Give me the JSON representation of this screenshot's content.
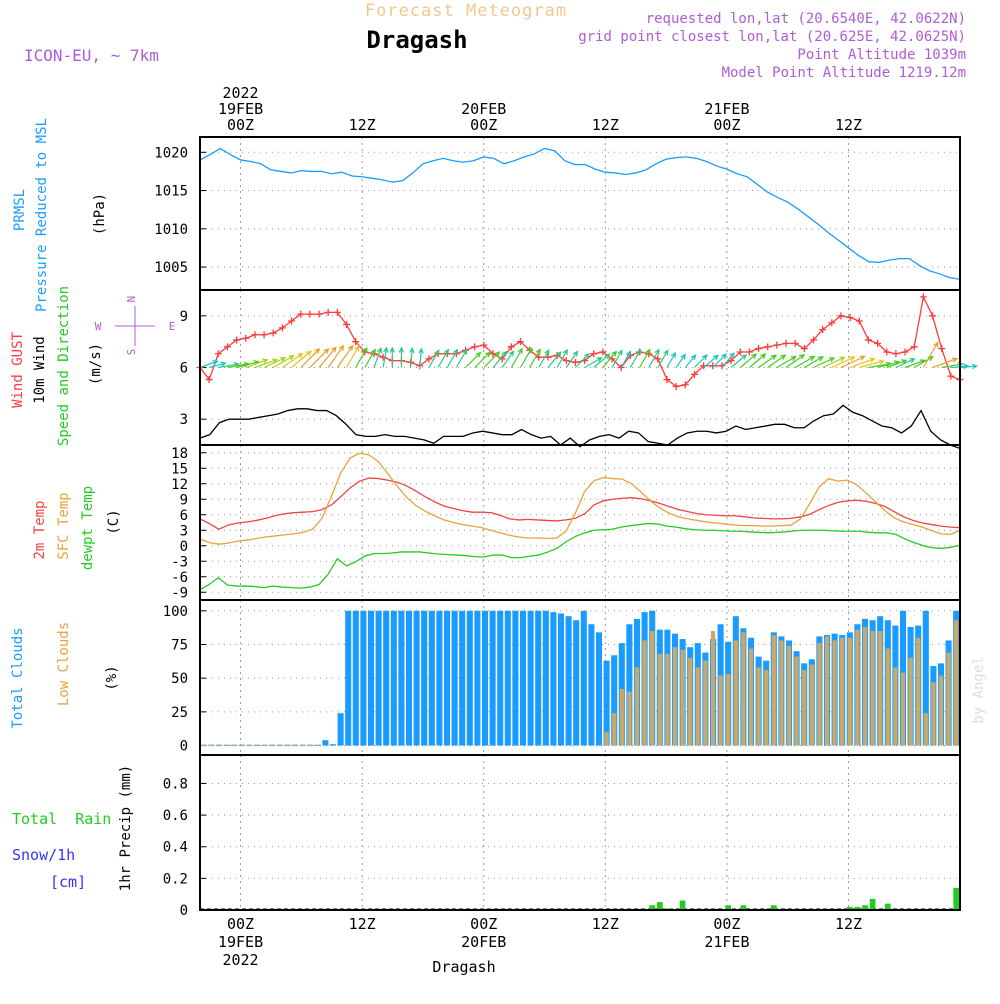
{
  "header": {
    "app_title": "Forecast Meteogram",
    "location": "Dragash",
    "model": "ICON-EU, ~ 7km",
    "requested": "requested lon,lat (20.6540E, 42.0622N)",
    "grid_point": "grid point closest lon,lat (20.625E, 42.0625N)",
    "point_altitude": "Point Altitude 1039m",
    "model_altitude": "Model Point Altitude 1219.12m"
  },
  "footer": {
    "location": "Dragash",
    "credit": "by Angel"
  },
  "time_axis": {
    "start": "2022-02-18T20:00Z",
    "end": "2022-02-21T23:00Z",
    "top_ticks": [
      {
        "lines": [
          "2022",
          "19FEB",
          "00Z"
        ]
      },
      {
        "lines": [
          "12Z"
        ]
      },
      {
        "lines": [
          "20FEB",
          "00Z"
        ]
      },
      {
        "lines": [
          "12Z"
        ]
      },
      {
        "lines": [
          "21FEB",
          "00Z"
        ]
      },
      {
        "lines": [
          "12Z"
        ]
      }
    ],
    "bottom_ticks": [
      {
        "lines": [
          "00Z",
          "19FEB",
          "2022"
        ]
      },
      {
        "lines": [
          "12Z"
        ]
      },
      {
        "lines": [
          "00Z",
          "20FEB"
        ]
      },
      {
        "lines": [
          "12Z"
        ]
      },
      {
        "lines": [
          "00Z",
          "21FEB"
        ]
      },
      {
        "lines": [
          "12Z"
        ]
      }
    ]
  },
  "colors": {
    "pressure": "#1a9cff",
    "gust": "#ff3b3b",
    "wind": "#000000",
    "temp2m": "#ee4444",
    "sfc_temp": "#e8a33a",
    "dewpt": "#22cc22",
    "total_clouds": "#1a9cff",
    "low_clouds": "#c9a86a",
    "rain": "#22cc22",
    "snow": "#3333ff",
    "title_orange": "#f0c890",
    "purple": "#b05cd8"
  },
  "chart_data": [
    {
      "type": "line",
      "panel": "pressure",
      "ylabel_lines": [
        "PRMSL",
        "Pressure Reduced to MSL"
      ],
      "unit": "(hPa)",
      "ylim": [
        1002,
        1022
      ],
      "yticks": [
        1005,
        1010,
        1015,
        1020
      ],
      "grid": true,
      "series": [
        {
          "values": [
            1019,
            1019.7,
            1020.5,
            1019.7,
            1019,
            1018.8,
            1018.5,
            1017.7,
            1017.5,
            1017.3,
            1017.6,
            1017.5,
            1017.5,
            1017.2,
            1017.4,
            1016.9,
            1016.8,
            1016.6,
            1016.4,
            1016.1,
            1016.3,
            1017.3,
            1018.5,
            1018.9,
            1019.2,
            1018.9,
            1018.7,
            1018.9,
            1019.4,
            1019.2,
            1018.5,
            1018.9,
            1019.4,
            1019.8,
            1020.5,
            1020.2,
            1018.9,
            1018.4,
            1018.4,
            1017.8,
            1017.4,
            1017.3,
            1017.1,
            1017.3,
            1017.7,
            1018.5,
            1019.1,
            1019.3,
            1019.4,
            1019.2,
            1018.8,
            1018.2,
            1017.8,
            1017.2,
            1016.8,
            1015.8,
            1014.8,
            1014.1,
            1013.5,
            1012.6,
            1011.6,
            1010.6,
            1009.5,
            1008.5,
            1007.5,
            1006.5,
            1005.7,
            1005.6,
            1005.9,
            1006.1,
            1006.1,
            1005.2,
            1004.5,
            1004.1,
            1003.6,
            1003.4
          ]
        }
      ]
    },
    {
      "type": "line",
      "panel": "wind",
      "ylabel_gust": "Wind GUST",
      "ylabel_wind": "10m Wind",
      "ylabel_dir": "Speed and Direction",
      "unit": "(m/s)",
      "compass": {
        "n": "N",
        "s": "S",
        "w": "W",
        "e": "E"
      },
      "ylim": [
        1.5,
        10.5
      ],
      "yticks": [
        3,
        6,
        9
      ],
      "grid": true,
      "series": [
        {
          "name": "gust",
          "values": [
            6.0,
            5.3,
            6.8,
            7.2,
            7.6,
            7.7,
            7.9,
            7.9,
            8.0,
            8.3,
            8.7,
            9.1,
            9.1,
            9.1,
            9.2,
            9.2,
            8.5,
            7.5,
            6.9,
            6.8,
            6.6,
            6.4,
            6.4,
            6.3,
            6.1,
            6.5,
            6.8,
            6.8,
            6.8,
            7.0,
            7.2,
            7.3,
            6.8,
            6.5,
            7.2,
            7.5,
            7.0,
            6.6,
            6.6,
            6.7,
            6.4,
            6.3,
            6.4,
            6.8,
            6.9,
            6.5,
            6.0,
            6.7,
            6.9,
            6.8,
            6.5,
            5.3,
            4.9,
            5.0,
            5.6,
            6.1,
            6.1,
            6.1,
            6.4,
            6.9,
            6.9,
            7.1,
            7.2,
            7.3,
            7.4,
            7.4,
            7.1,
            7.6,
            8.2,
            8.6,
            9.0,
            8.9,
            8.7,
            7.6,
            7.4,
            6.9,
            6.8,
            6.9,
            7.2,
            10.1,
            9.0,
            7.1,
            5.5,
            5.3
          ]
        },
        {
          "name": "wind10m",
          "values": [
            1.9,
            2.1,
            2.8,
            3.0,
            3.0,
            3.0,
            3.1,
            3.2,
            3.3,
            3.5,
            3.6,
            3.6,
            3.5,
            3.5,
            3.2,
            2.7,
            2.1,
            2.0,
            2.0,
            2.1,
            2.0,
            2.0,
            1.9,
            1.8,
            1.6,
            2.0,
            2.0,
            2.0,
            2.2,
            2.3,
            2.2,
            2.1,
            2.1,
            2.4,
            2.1,
            1.9,
            2.0,
            1.5,
            1.9,
            1.4,
            1.8,
            2.0,
            2.1,
            1.9,
            2.3,
            2.2,
            1.7,
            1.6,
            1.5,
            1.9,
            2.2,
            2.3,
            2.3,
            2.2,
            2.3,
            2.6,
            2.4,
            2.5,
            2.6,
            2.7,
            2.7,
            2.5,
            2.5,
            2.9,
            3.2,
            3.3,
            3.8,
            3.4,
            3.2,
            2.9,
            2.6,
            2.5,
            2.2,
            2.6,
            3.5,
            2.3,
            1.8,
            1.5,
            1.3
          ]
        },
        {
          "name": "direction_deg",
          "values": [
            20,
            15,
            10,
            10,
            15,
            20,
            20,
            25,
            30,
            35,
            40,
            45,
            45,
            50,
            55,
            55,
            60,
            60,
            60,
            70,
            80,
            90,
            90,
            85,
            85,
            60,
            60,
            60,
            60,
            45,
            45,
            45,
            50,
            55,
            60,
            60,
            60,
            60,
            50,
            60,
            55,
            45,
            30,
            40,
            50,
            60,
            60,
            60,
            60,
            60,
            60,
            60,
            55,
            50,
            45,
            40,
            45,
            50,
            40,
            40,
            40,
            35,
            35,
            30,
            35,
            30,
            30,
            25,
            25,
            25,
            25,
            20,
            15,
            10,
            15,
            20,
            25,
            20,
            30,
            60,
            20,
            10,
            5,
            5
          ]
        }
      ]
    },
    {
      "type": "line",
      "panel": "temperature",
      "ylabel_t2m": "2m Temp",
      "ylabel_sfc": "SFC Temp",
      "ylabel_dew": "dewpt Temp",
      "unit": "(C)",
      "ylim": [
        -10.5,
        19.5
      ],
      "yticks": [
        -9,
        -6,
        -3,
        0,
        3,
        6,
        9,
        12,
        15,
        18
      ],
      "grid": true,
      "series": [
        {
          "name": "t2m",
          "values": [
            5.2,
            4.3,
            3.2,
            4.0,
            4.4,
            4.6,
            4.9,
            5.3,
            5.8,
            6.2,
            6.4,
            6.5,
            6.6,
            7.0,
            7.9,
            9.5,
            11.2,
            12.5,
            13.1,
            13.0,
            12.7,
            12.3,
            11.6,
            10.6,
            9.5,
            8.5,
            7.7,
            7.2,
            6.8,
            6.5,
            6.5,
            6.4,
            5.9,
            5.2,
            5.0,
            5.1,
            5.0,
            4.9,
            4.8,
            5.0,
            5.3,
            6.2,
            7.9,
            8.7,
            9.0,
            9.2,
            9.3,
            9.1,
            8.7,
            8.2,
            7.6,
            7.0,
            6.6,
            6.2,
            6.0,
            5.9,
            5.8,
            5.8,
            5.6,
            5.4,
            5.3,
            5.2,
            5.2,
            5.3,
            5.6,
            6.1,
            7.0,
            7.8,
            8.4,
            8.7,
            8.8,
            8.6,
            8.2,
            7.6,
            6.6,
            5.6,
            4.9,
            4.4,
            4.1,
            3.8,
            3.6,
            3.5
          ]
        },
        {
          "name": "sfc",
          "values": [
            1.3,
            0.6,
            0.3,
            0.5,
            0.9,
            1.1,
            1.4,
            1.7,
            1.9,
            2.1,
            2.3,
            2.6,
            3.2,
            5.3,
            9.5,
            14.1,
            17.0,
            17.9,
            17.6,
            16.3,
            14.0,
            11.6,
            9.4,
            7.8,
            6.7,
            5.8,
            5.0,
            4.5,
            4.1,
            3.8,
            3.5,
            3.0,
            2.5,
            2.0,
            1.7,
            1.5,
            1.5,
            1.4,
            1.5,
            2.8,
            6.3,
            10.5,
            12.6,
            13.2,
            13.0,
            12.9,
            12.0,
            10.4,
            8.7,
            7.3,
            6.3,
            5.6,
            5.2,
            4.9,
            4.6,
            4.4,
            4.2,
            4.0,
            3.9,
            3.9,
            3.8,
            3.8,
            3.9,
            4.0,
            5.2,
            8.2,
            11.4,
            13.0,
            12.5,
            12.7,
            11.8,
            10.2,
            8.5,
            6.8,
            5.4,
            4.6,
            4.1,
            3.6,
            2.9,
            2.3,
            2.2,
            3.0
          ]
        },
        {
          "name": "dewpt",
          "values": [
            -8.5,
            -7.5,
            -6.2,
            -7.6,
            -7.8,
            -7.8,
            -7.9,
            -8.1,
            -7.8,
            -8.0,
            -8.1,
            -8.2,
            -8.0,
            -7.5,
            -5.5,
            -2.5,
            -3.9,
            -3.1,
            -2.0,
            -1.5,
            -1.5,
            -1.4,
            -1.2,
            -1.2,
            -1.2,
            -1.4,
            -1.6,
            -1.7,
            -1.8,
            -1.9,
            -2.1,
            -2.2,
            -1.8,
            -1.8,
            -2.3,
            -2.3,
            -2.0,
            -1.8,
            -1.2,
            -0.5,
            0.8,
            1.8,
            2.5,
            3.0,
            3.1,
            3.2,
            3.6,
            3.9,
            4.1,
            4.3,
            4.2,
            3.8,
            3.6,
            3.3,
            3.1,
            3.0,
            3.0,
            2.9,
            2.8,
            2.8,
            2.7,
            2.6,
            2.5,
            2.6,
            2.7,
            2.9,
            3.0,
            3.0,
            3.0,
            2.9,
            2.8,
            2.8,
            2.8,
            2.6,
            2.5,
            2.5,
            2.2,
            1.3,
            0.6,
            0.0,
            -0.4,
            -0.5,
            -0.3,
            0.1
          ]
        }
      ]
    },
    {
      "type": "bar",
      "panel": "clouds",
      "ylabel_total": "Total Clouds",
      "ylabel_low": "Low Clouds",
      "unit": "(%)",
      "ylim": [
        -7,
        108
      ],
      "yticks": [
        0,
        25,
        50,
        75,
        100
      ],
      "grid": true,
      "series": [
        {
          "name": "total",
          "values": [
            0,
            0,
            0,
            0,
            0,
            0,
            0,
            0,
            0,
            0,
            0,
            0,
            0,
            0,
            0,
            0,
            4,
            1,
            24,
            100,
            100,
            100,
            100,
            100,
            100,
            100,
            100,
            100,
            100,
            100,
            100,
            100,
            100,
            100,
            100,
            100,
            100,
            100,
            100,
            100,
            100,
            100,
            100,
            100,
            100,
            100,
            99,
            98,
            96,
            93,
            100,
            90,
            84,
            63,
            67,
            76,
            90,
            94,
            99,
            100,
            86,
            86,
            83,
            79,
            73,
            76,
            69,
            79,
            90,
            77,
            96,
            87,
            80,
            66,
            63,
            84,
            81,
            78,
            70,
            61,
            64,
            81,
            82,
            83,
            82,
            84,
            90,
            94,
            93,
            96,
            93,
            89,
            100,
            88,
            89,
            100,
            59,
            61,
            78,
            100
          ]
        },
        {
          "name": "low",
          "values": [
            0,
            0,
            0,
            0,
            0,
            0,
            0,
            0,
            0,
            0,
            0,
            0,
            0,
            0,
            0,
            0,
            0,
            0,
            0,
            0,
            0,
            0,
            0,
            0,
            0,
            0,
            0,
            0,
            0,
            0,
            0,
            0,
            0,
            0,
            0,
            0,
            0,
            0,
            0,
            0,
            0,
            0,
            0,
            0,
            0,
            0,
            0,
            0,
            0,
            0,
            0,
            0,
            0,
            10,
            24,
            42,
            40,
            58,
            78,
            85,
            68,
            68,
            73,
            71,
            65,
            58,
            63,
            85,
            52,
            53,
            78,
            84,
            72,
            58,
            56,
            82,
            78,
            74,
            66,
            56,
            60,
            76,
            81,
            78,
            80,
            80,
            86,
            88,
            85,
            85,
            72,
            58,
            54,
            65,
            80,
            24,
            47,
            52,
            69,
            93
          ]
        }
      ]
    },
    {
      "type": "bar",
      "panel": "precip",
      "ylabel_rain": "Total  Rain",
      "ylabel_snow1": "Snow/1h",
      "ylabel_snow2": "[cm]",
      "ylabel": "1hr Precip (mm)",
      "ylim": [
        0,
        0.98
      ],
      "yticks": [
        0,
        0.2,
        0.4,
        0.6,
        0.8
      ],
      "ytick_labels": [
        "0",
        "0.2",
        "0.4",
        "0.6",
        "0.8"
      ],
      "grid": true,
      "series": [
        {
          "name": "rain",
          "values": [
            0,
            0,
            0,
            0,
            0,
            0,
            0,
            0,
            0,
            0,
            0,
            0,
            0,
            0,
            0,
            0,
            0,
            0,
            0,
            0,
            0,
            0,
            0,
            0,
            0,
            0,
            0,
            0,
            0,
            0,
            0,
            0,
            0,
            0,
            0,
            0,
            0,
            0,
            0,
            0,
            0,
            0,
            0,
            0,
            0,
            0,
            0,
            0,
            0,
            0,
            0,
            0,
            0,
            0,
            0,
            0,
            0,
            0,
            0,
            0.03,
            0.05,
            0.01,
            0,
            0.06,
            0,
            0,
            0,
            0,
            0,
            0.03,
            0,
            0.03,
            0,
            0,
            0,
            0.03,
            0,
            0,
            0,
            0,
            0,
            0,
            0,
            0,
            0,
            0.02,
            0.02,
            0.03,
            0.07,
            0,
            0.04,
            0,
            0,
            0,
            0,
            0,
            0,
            0,
            0,
            0.14
          ]
        }
      ]
    }
  ]
}
